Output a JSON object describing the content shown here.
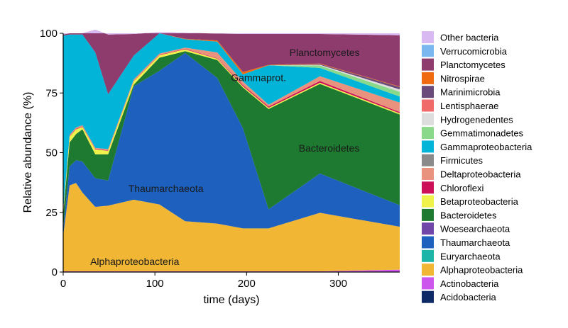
{
  "chart_data": {
    "type": "area",
    "stacked": true,
    "xlabel": "time (days)",
    "ylabel": "Relative abundance (%)",
    "xlim": [
      0,
      367
    ],
    "ylim": [
      0,
      100
    ],
    "xticks": [
      0,
      100,
      200,
      300
    ],
    "yticks": [
      0,
      25,
      50,
      75,
      100
    ],
    "grid": false,
    "legend_position": "right",
    "x": [
      0,
      7,
      14,
      21,
      35,
      49,
      77,
      105,
      133,
      168,
      196,
      224,
      280,
      367
    ],
    "series": [
      {
        "name": "Acidobacteria",
        "color": "#0d2a66",
        "values": [
          0,
          0,
          0,
          0,
          0,
          0,
          0,
          0,
          0,
          0,
          0,
          0,
          0,
          0
        ]
      },
      {
        "name": "Actinobacteria",
        "color": "#cc55ee",
        "values": [
          0.3,
          0.3,
          0.3,
          0.3,
          0.3,
          0.3,
          0.3,
          0.3,
          0.3,
          0.3,
          0.3,
          0.3,
          0.3,
          1.0
        ]
      },
      {
        "name": "Alphaproteobacteria",
        "color": "#f0b634",
        "values": [
          15,
          36,
          37,
          33,
          27,
          27.5,
          30,
          28,
          21,
          20,
          18,
          18,
          24.5,
          18
        ]
      },
      {
        "name": "Euryarchaeota",
        "color": "#1cb5a8",
        "values": [
          0,
          0,
          0,
          0,
          0,
          0,
          0,
          0,
          0,
          0,
          0,
          0,
          0,
          0
        ]
      },
      {
        "name": "Thaumarchaeota",
        "color": "#1d60bd",
        "values": [
          3,
          8,
          9.5,
          13,
          12,
          10.5,
          47.5,
          56,
          70.5,
          61,
          42,
          8,
          16.5,
          9
        ]
      },
      {
        "name": "Woesearchaeota",
        "color": "#7046a8",
        "values": [
          0,
          0,
          0,
          0,
          0,
          0,
          0,
          0,
          0,
          0,
          0,
          0,
          0,
          0
        ]
      },
      {
        "name": "Bacteroidetes",
        "color": "#1e7a30",
        "values": [
          6,
          10,
          11,
          13.5,
          10,
          11,
          0.7,
          5.5,
          0.7,
          7.5,
          17,
          42,
          37.5,
          38
        ]
      },
      {
        "name": "Betaproteobacteria",
        "color": "#eef24a",
        "values": [
          1,
          2.5,
          2,
          1,
          2,
          1.5,
          1.5,
          1,
          0.8,
          0.5,
          0.5,
          0.5,
          0.5,
          0.5
        ]
      },
      {
        "name": "Chloroflexi",
        "color": "#cc0f58",
        "values": [
          0.2,
          0.2,
          0.2,
          0.2,
          0.2,
          0.2,
          0.2,
          0.2,
          0.2,
          0.2,
          0.5,
          0.5,
          0.7,
          0.5
        ]
      },
      {
        "name": "Deltaproteobacteria",
        "color": "#e9927e",
        "values": [
          0.5,
          0.5,
          0.5,
          0.5,
          0.5,
          0.5,
          0.5,
          0.5,
          0.5,
          2.5,
          1.5,
          0.8,
          2.0,
          4.0
        ]
      },
      {
        "name": "Firmicutes",
        "color": "#8a8a8a",
        "values": [
          0,
          0,
          0,
          0,
          0,
          0,
          0,
          0,
          0,
          0,
          0,
          0,
          0,
          0
        ]
      },
      {
        "name": "Gammaproteobacteria",
        "color": "#02b5d8",
        "values": [
          73,
          42,
          39,
          38,
          40,
          23,
          10,
          8.5,
          3.5,
          4.5,
          3,
          16.5,
          3.5,
          2.5
        ]
      },
      {
        "name": "Gemmatimonadetes",
        "color": "#8ad98a",
        "values": [
          0,
          0,
          0,
          0,
          0,
          0,
          0,
          0,
          0,
          0,
          0,
          0,
          1.0,
          2.0
        ]
      },
      {
        "name": "Hydrogenedentes",
        "color": "#dddddd",
        "values": [
          0,
          0,
          0,
          0,
          0,
          0,
          0,
          0,
          0,
          0,
          0,
          0,
          0.3,
          1.0
        ]
      },
      {
        "name": "Lentisphaerae",
        "color": "#f06a6a",
        "values": [
          0,
          0,
          0,
          0,
          0,
          0,
          0,
          0,
          0,
          0,
          0,
          0,
          0,
          0
        ]
      },
      {
        "name": "Marinimicrobia",
        "color": "#6a4a7a",
        "values": [
          0,
          0,
          0,
          0,
          0,
          0,
          0,
          0,
          0,
          0,
          0,
          0,
          0.3,
          1.0
        ]
      },
      {
        "name": "Nitrospirae",
        "color": "#f06a10",
        "values": [
          0,
          0,
          0,
          0,
          0,
          0,
          0,
          0,
          0.2,
          0.5,
          1.0,
          0.2,
          0.2,
          0.2
        ]
      },
      {
        "name": "Planctomycetes",
        "color": "#8e3b6e",
        "values": [
          0.5,
          0.5,
          0.5,
          0.5,
          9.5,
          25,
          9,
          0.5,
          2.5,
          2.9,
          15.9,
          12.9,
          12.4,
          21.5
        ]
      },
      {
        "name": "Verrucomicrobia",
        "color": "#7ab6f0",
        "values": [
          0,
          0,
          0,
          0,
          0,
          0,
          0,
          0,
          0,
          0,
          0,
          0,
          0,
          0
        ]
      },
      {
        "name": "Other bacteria",
        "color": "#d9b9f2",
        "values": [
          0.5,
          0.5,
          0.5,
          0.5,
          1.5,
          1.5,
          1.0,
          0.5,
          0.5,
          0.6,
          0.5,
          0.4,
          0.5,
          0.4
        ]
      }
    ],
    "annotations": [
      {
        "text": "Planctomycetes",
        "x": 285,
        "y": 92
      },
      {
        "text": "Gammaprot.",
        "x": 213,
        "y": 81.5
      },
      {
        "text": "Bacteroidetes",
        "x": 290,
        "y": 52
      },
      {
        "text": "Thaumarchaeota",
        "x": 112,
        "y": 35
      },
      {
        "text": "Alphaproteobacteria",
        "x": 78,
        "y": 4.5
      }
    ]
  }
}
